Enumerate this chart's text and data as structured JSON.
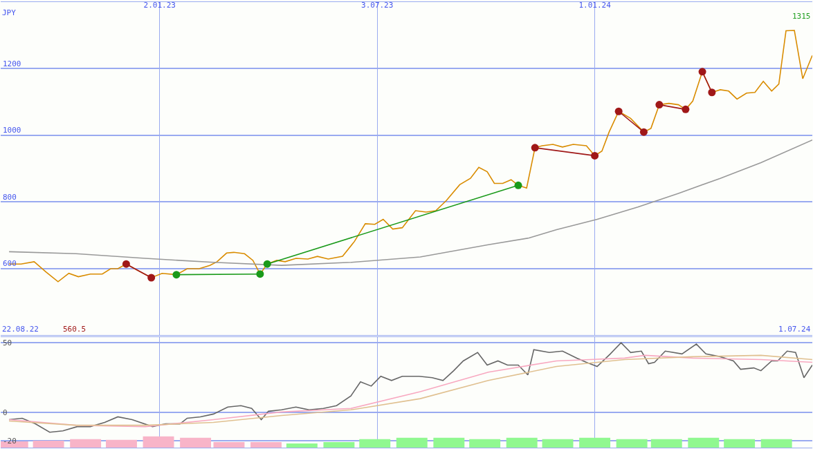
{
  "chart_data": [
    {
      "type": "line",
      "xlim": [
        "2022-08-22",
        "2024-07-01"
      ],
      "xticks": [
        {
          "value": "2023-01-02",
          "label": "2.01.23"
        },
        {
          "value": "2023-07-03",
          "label": "3.07.23"
        },
        {
          "value": "2024-01-01",
          "label": "1.01.24"
        }
      ],
      "ylim": [
        400,
        1400
      ],
      "yticks": [
        600,
        800,
        1000,
        1200
      ],
      "grid": true,
      "ylabel": "JPY",
      "annotations": [
        "22.08.22",
        "560.5",
        "1315",
        "1.07.24"
      ],
      "series": [
        {
          "color": "#d98c00",
          "marker": "none",
          "x": [
            "2022-08-29",
            "2022-09-08",
            "2022-09-19",
            "2022-09-29",
            "2022-10-09",
            "2022-10-18",
            "2022-10-26",
            "2022-11-05",
            "2022-11-15",
            "2022-11-22",
            "2022-11-28",
            "2022-12-05",
            "2022-12-15",
            "2022-12-26",
            "2023-01-04",
            "2023-01-16",
            "2023-01-25",
            "2023-02-04",
            "2023-02-13",
            "2023-02-19",
            "2023-02-27",
            "2023-03-05",
            "2023-03-14",
            "2023-03-21",
            "2023-03-27",
            "2023-04-02",
            "2023-04-10",
            "2023-04-17",
            "2023-04-26",
            "2023-05-06",
            "2023-05-14",
            "2023-05-23",
            "2023-06-04",
            "2023-06-14",
            "2023-06-23",
            "2023-07-01",
            "2023-07-08",
            "2023-07-16",
            "2023-07-24",
            "2023-08-04",
            "2023-08-13",
            "2023-08-21",
            "2023-08-30",
            "2023-09-10",
            "2023-09-19",
            "2023-09-26",
            "2023-10-03",
            "2023-10-09",
            "2023-10-16",
            "2023-10-23",
            "2023-10-29",
            "2023-11-05",
            "2023-11-12",
            "2023-11-18",
            "2023-11-27",
            "2023-12-05",
            "2023-12-14",
            "2023-12-25",
            "2024-01-01",
            "2024-01-07",
            "2024-01-13",
            "2024-01-21",
            "2024-01-31",
            "2024-02-11",
            "2024-02-17",
            "2024-02-24",
            "2024-03-03",
            "2024-03-11",
            "2024-03-17",
            "2024-03-23",
            "2024-03-31",
            "2024-04-08",
            "2024-04-15",
            "2024-04-22",
            "2024-04-29",
            "2024-05-07",
            "2024-05-14",
            "2024-05-21",
            "2024-05-28",
            "2024-06-03",
            "2024-06-09",
            "2024-06-16",
            "2024-06-23",
            "2024-07-01"
          ],
          "values": [
            614,
            614,
            621,
            590,
            561,
            586,
            576,
            584,
            584,
            600,
            600,
            614,
            594,
            573,
            586,
            582,
            600,
            600,
            610,
            621,
            647,
            649,
            645,
            625,
            584,
            614,
            625,
            621,
            631,
            629,
            637,
            629,
            637,
            682,
            735,
            733,
            748,
            719,
            723,
            774,
            770,
            774,
            805,
            852,
            871,
            904,
            891,
            856,
            856,
            867,
            850,
            842,
            963,
            969,
            973,
            965,
            973,
            969,
            939,
            953,
            1010,
            1072,
            1051,
            1010,
            1021,
            1092,
            1096,
            1092,
            1078,
            1103,
            1191,
            1129,
            1137,
            1133,
            1109,
            1127,
            1129,
            1162,
            1133,
            1154,
            1314,
            1315,
            1170,
            1240
          ]
        },
        {
          "color": "#999999",
          "marker": "none",
          "x": [
            "2022-08-29",
            "2022-10-24",
            "2022-12-21",
            "2023-02-16",
            "2023-04-14",
            "2023-06-11",
            "2023-08-08",
            "2023-10-04",
            "2023-11-07",
            "2023-11-30",
            "2024-01-03",
            "2024-02-06",
            "2024-03-11",
            "2024-04-15",
            "2024-05-19",
            "2024-07-01"
          ],
          "values": [
            651,
            645,
            631,
            619,
            610,
            619,
            635,
            672,
            692,
            717,
            748,
            785,
            826,
            871,
            918,
            986
          ]
        },
        {
          "color": "#a01818",
          "marker": "circle",
          "x": [
            "2022-12-05",
            "2022-12-26"
          ],
          "values": [
            614,
            573
          ]
        },
        {
          "color": "#1a9a1a",
          "marker": "circle",
          "x": [
            "2023-01-16",
            "2023-03-27"
          ],
          "values": [
            582,
            584
          ]
        },
        {
          "color": "#1a9a1a",
          "marker": "circle",
          "x": [
            "2023-04-02",
            "2023-10-29"
          ],
          "values": [
            614,
            850
          ]
        },
        {
          "color": "#a01818",
          "marker": "circle",
          "x": [
            "2023-11-12",
            "2024-01-01"
          ],
          "values": [
            963,
            939
          ]
        },
        {
          "color": "#a01818",
          "marker": "circle",
          "x": [
            "2024-01-21",
            "2024-02-11"
          ],
          "values": [
            1072,
            1010
          ]
        },
        {
          "color": "#a01818",
          "marker": "circle",
          "x": [
            "2024-02-24",
            "2024-03-17"
          ],
          "values": [
            1092,
            1078
          ]
        },
        {
          "color": "#a01818",
          "marker": "circle",
          "x": [
            "2024-03-31",
            "2024-04-08"
          ],
          "values": [
            1191,
            1129
          ]
        }
      ]
    },
    {
      "type": "line",
      "xlim": [
        "2022-08-22",
        "2024-07-01"
      ],
      "xticks": [
        {
          "value": "2023-01-02",
          "label": null
        },
        {
          "value": "2023-07-03",
          "label": null
        },
        {
          "value": "2024-01-01",
          "label": null
        }
      ],
      "tick_labels": "y",
      "ylim": [
        -25,
        54
      ],
      "yticks": [
        50,
        0,
        -20
      ],
      "grid": true,
      "series": [
        {
          "type": "bar",
          "x": [
            "2022-09-01",
            "2022-10-01",
            "2022-11-01",
            "2022-12-01",
            "2023-01-01",
            "2023-02-01",
            "2023-03-01",
            "2023-04-01",
            "2023-05-01",
            "2023-06-01",
            "2023-07-01",
            "2023-08-01",
            "2023-09-01",
            "2023-10-01",
            "2023-11-01",
            "2023-12-01",
            "2024-01-01",
            "2024-02-01",
            "2024-03-01",
            "2024-04-01",
            "2024-05-01",
            "2024-06-01"
          ],
          "base": [
            -25,
            -25,
            -25,
            -25,
            -25,
            -25,
            -25,
            -25,
            -25,
            -25,
            -25,
            -25,
            -25,
            -25,
            -25,
            -25,
            -25,
            -25,
            -25,
            -25,
            -25,
            -25
          ],
          "values": [
            4.5,
            5,
            6,
            5.5,
            8,
            7,
            4,
            4,
            3,
            4,
            6,
            7,
            7,
            6,
            7,
            6,
            7,
            6,
            6,
            7,
            6,
            6
          ],
          "colors": [
            "#f8b4c8",
            "#f8b4c8",
            "#f8b4c8",
            "#f8b4c8",
            "#f8b4c8",
            "#f8b4c8",
            "#f8b4c8",
            "#f8b4c8",
            "#90f890",
            "#90f890",
            "#90f890",
            "#90f890",
            "#90f890",
            "#90f890",
            "#90f890",
            "#90f890",
            "#90f890",
            "#90f890",
            "#90f890",
            "#90f890",
            "#90f890",
            "#90f890"
          ]
        },
        {
          "color": "#666666",
          "x": [
            "2022-08-29",
            "2022-09-09",
            "2022-09-20",
            "2022-10-02",
            "2022-10-13",
            "2022-10-25",
            "2022-11-05",
            "2022-11-17",
            "2022-11-28",
            "2022-12-10",
            "2022-12-27",
            "2023-01-07",
            "2023-01-19",
            "2023-01-25",
            "2023-02-05",
            "2023-02-16",
            "2023-02-28",
            "2023-03-11",
            "2023-03-20",
            "2023-03-28",
            "2023-04-03",
            "2023-04-14",
            "2023-04-26",
            "2023-05-07",
            "2023-05-19",
            "2023-05-30",
            "2023-06-11",
            "2023-06-19",
            "2023-06-28",
            "2023-07-06",
            "2023-07-15",
            "2023-07-24",
            "2023-08-07",
            "2023-08-18",
            "2023-08-27",
            "2023-09-05",
            "2023-09-13",
            "2023-09-25",
            "2023-10-03",
            "2023-10-12",
            "2023-10-20",
            "2023-10-29",
            "2023-11-06",
            "2023-11-11",
            "2023-11-24",
            "2023-12-05",
            "2023-12-17",
            "2023-12-25",
            "2024-01-03",
            "2024-01-14",
            "2024-01-23",
            "2024-01-31",
            "2024-02-09",
            "2024-02-15",
            "2024-02-20",
            "2024-02-29",
            "2024-03-14",
            "2024-03-26",
            "2024-04-03",
            "2024-04-15",
            "2024-04-26",
            "2024-05-02",
            "2024-05-13",
            "2024-05-19",
            "2024-05-28",
            "2024-06-02",
            "2024-06-10",
            "2024-06-17",
            "2024-06-24",
            "2024-07-01"
          ],
          "values": [
            -5,
            -4,
            -8,
            -14,
            -13,
            -10,
            -10,
            -7,
            -3,
            -5,
            -10,
            -8,
            -8,
            -4,
            -3,
            -1,
            4,
            5,
            3,
            -5,
            1,
            2,
            4,
            2,
            3,
            5,
            12,
            22,
            19,
            26,
            23,
            26,
            26,
            25,
            23,
            30,
            37,
            43,
            34,
            37,
            34,
            34,
            27,
            45,
            43,
            44,
            39,
            36,
            33,
            42,
            50,
            43,
            44,
            35,
            36,
            44,
            42,
            49,
            42,
            40,
            37,
            31,
            32,
            30,
            37,
            37,
            44,
            43,
            25,
            34
          ]
        },
        {
          "color": "#f8a8c0",
          "x": [
            "2022-08-29",
            "2022-10-24",
            "2022-12-21",
            "2023-02-16",
            "2023-04-14",
            "2023-06-11",
            "2023-08-08",
            "2023-10-04",
            "2023-11-30",
            "2023-12-28",
            "2024-01-26",
            "2024-02-12",
            "2024-03-23",
            "2024-05-19",
            "2024-07-01"
          ],
          "values": [
            -5,
            -9,
            -10,
            -5,
            0.5,
            3,
            15,
            29,
            37,
            38,
            39,
            41,
            39,
            38,
            36
          ]
        },
        {
          "color": "#e0c090",
          "x": [
            "2022-08-29",
            "2022-10-24",
            "2022-12-21",
            "2023-02-16",
            "2023-04-14",
            "2023-06-11",
            "2023-08-08",
            "2023-10-04",
            "2023-11-30",
            "2024-01-26",
            "2024-03-23",
            "2024-05-19",
            "2024-07-01"
          ],
          "values": [
            -6,
            -9,
            -9,
            -7,
            -2,
            2,
            10,
            23,
            33,
            38,
            40,
            41,
            38
          ]
        }
      ]
    }
  ]
}
